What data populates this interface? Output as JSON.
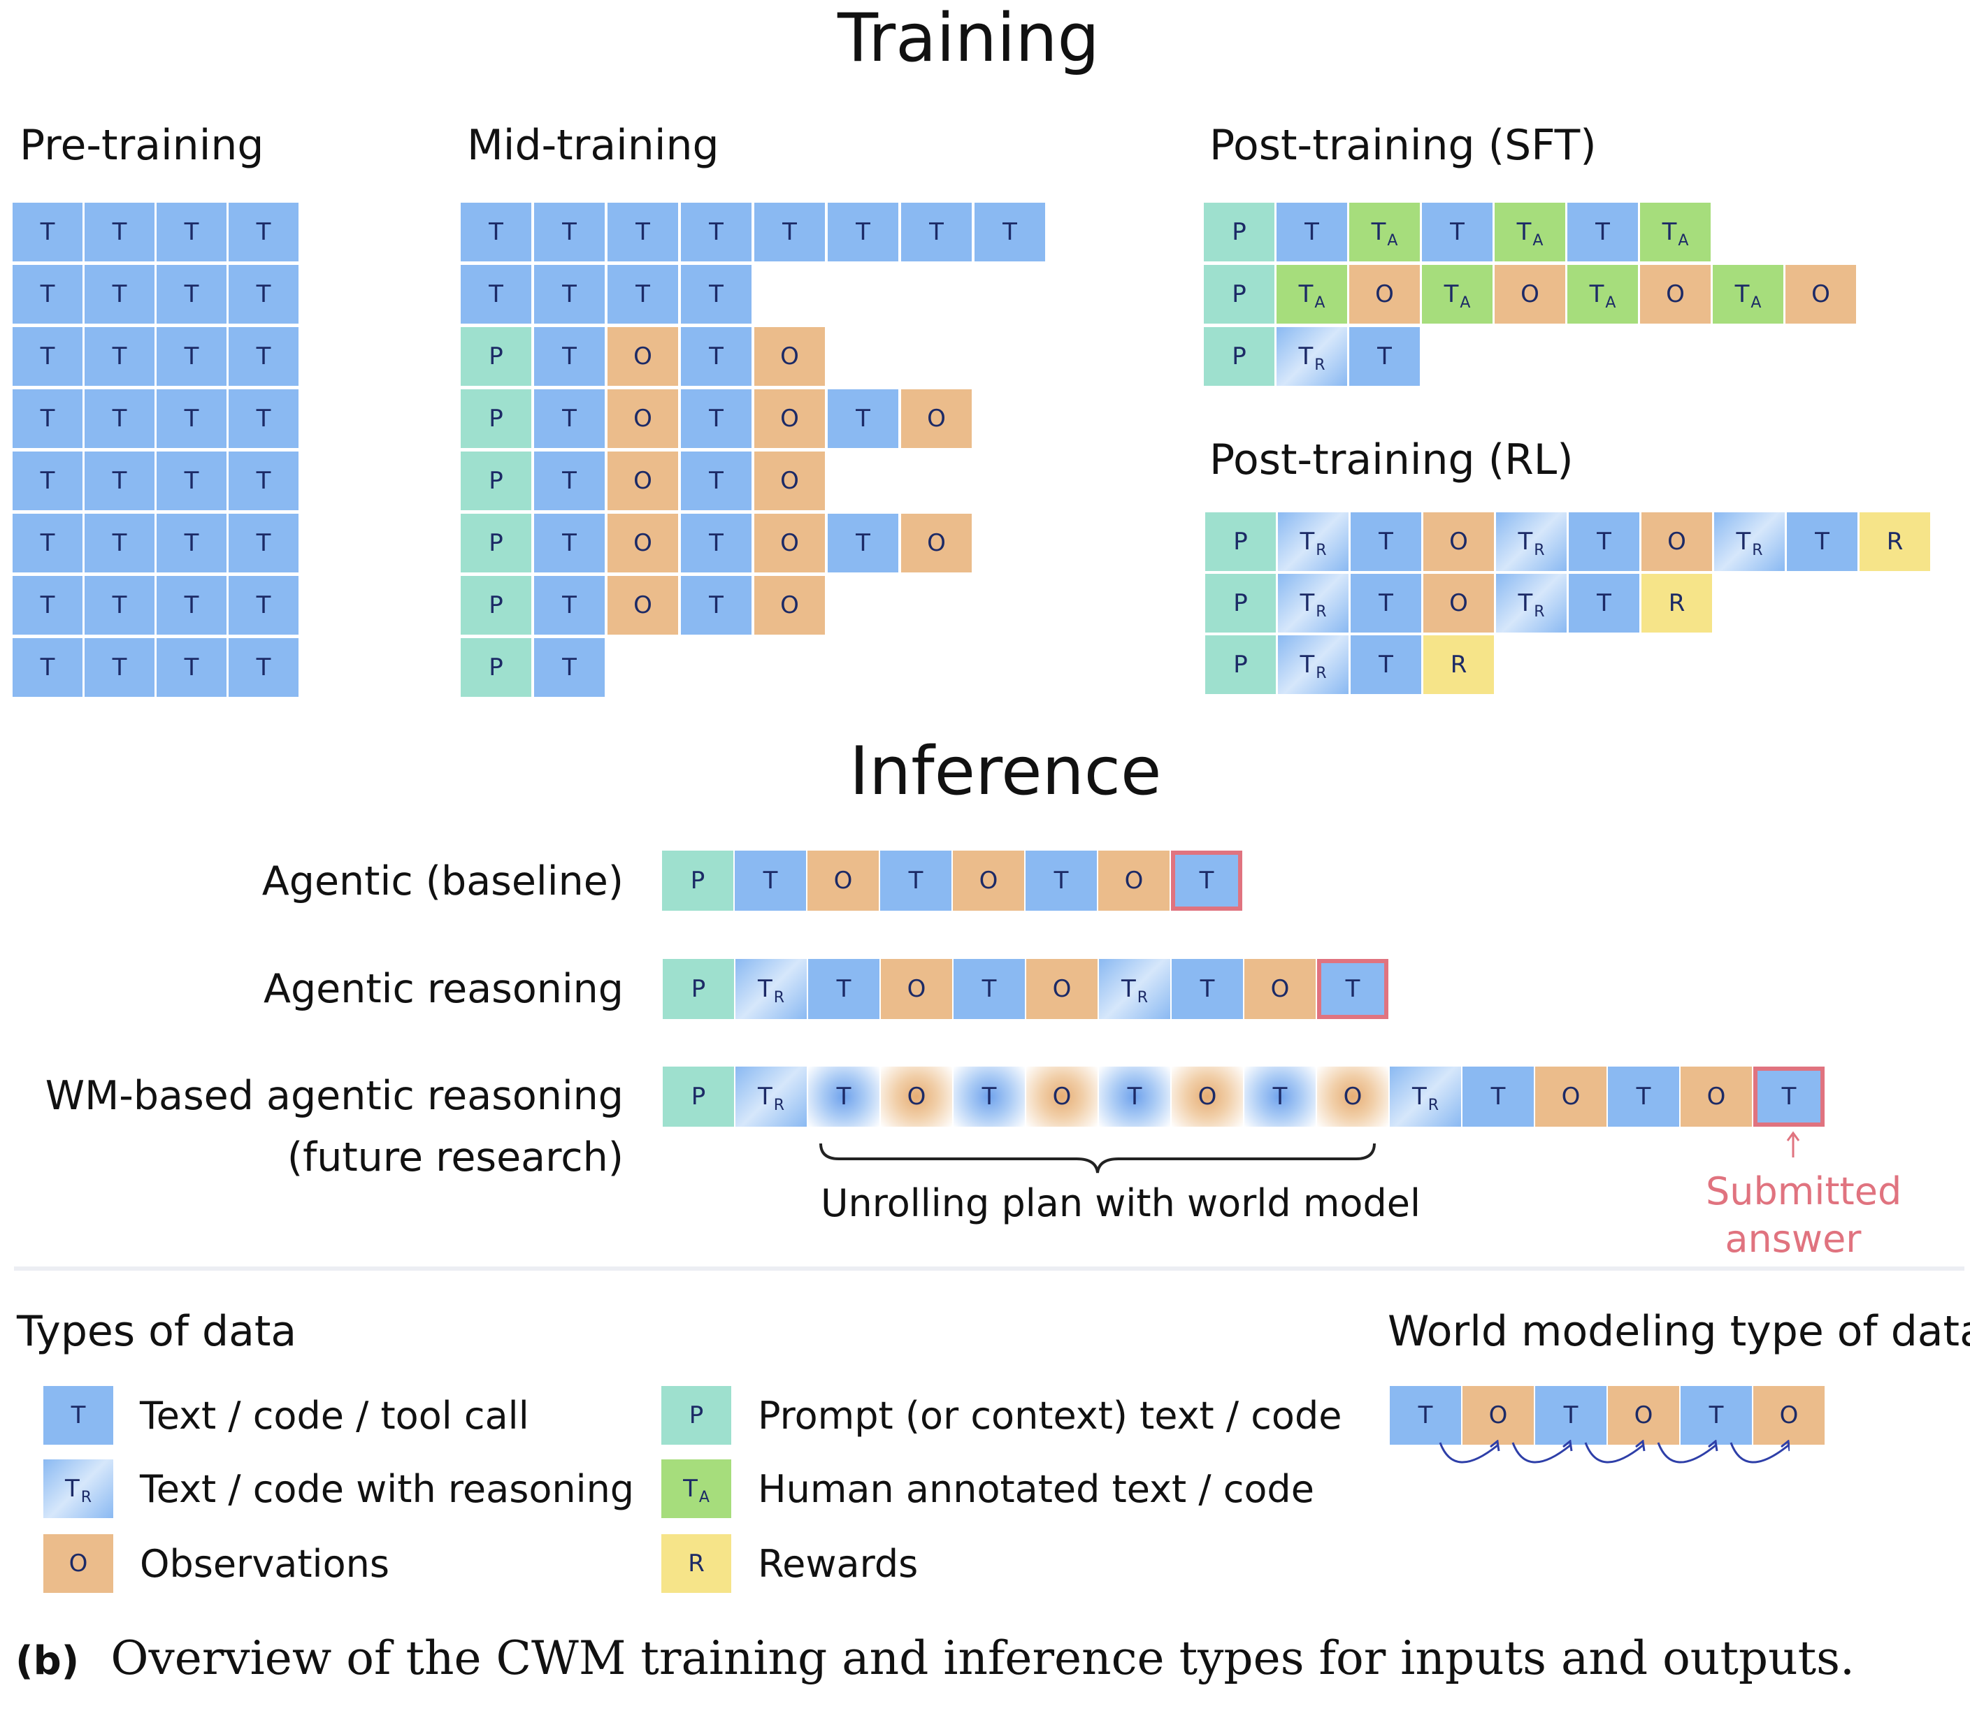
{
  "titles": {
    "training": "Training",
    "inference": "Inference"
  },
  "sections": {
    "pretraining": "Pre-training",
    "midtraining": "Mid-training",
    "post_sft": "Post-training (SFT)",
    "post_rl": "Post-training (RL)"
  },
  "inference_labels": {
    "baseline": "Agentic (baseline)",
    "reasoning": "Agentic reasoning",
    "wm_line1": "WM-based agentic reasoning",
    "wm_line2": "(future research)",
    "brace_text": "Unrolling plan with world model",
    "submitted_line1": "Submitted",
    "submitted_line2": "answer"
  },
  "legend": {
    "title": "Types of data",
    "wm_title": "World modeling type of data",
    "items": [
      {
        "type": "T",
        "text": "Text / code / tool call"
      },
      {
        "type": "TR",
        "text": "Text / code with reasoning"
      },
      {
        "type": "O",
        "text": "Observations"
      },
      {
        "type": "P",
        "text": "Prompt (or context)  text / code"
      },
      {
        "type": "TA",
        "text": "Human annotated text / code"
      },
      {
        "type": "R",
        "text": "Rewards"
      }
    ]
  },
  "caption": {
    "label": "(b)",
    "text": "Overview of the CWM training and inference types for inputs and outputs."
  },
  "token_letters": {
    "T": "T",
    "O": "O",
    "P": "P",
    "R": "R",
    "TR_main": "T",
    "TR_sub": "R",
    "TA_main": "T",
    "TA_sub": "A"
  },
  "sequences": {
    "pretraining": [
      [
        "T",
        "T",
        "T",
        "T"
      ],
      [
        "T",
        "T",
        "T",
        "T"
      ],
      [
        "T",
        "T",
        "T",
        "T"
      ],
      [
        "T",
        "T",
        "T",
        "T"
      ],
      [
        "T",
        "T",
        "T",
        "T"
      ],
      [
        "T",
        "T",
        "T",
        "T"
      ],
      [
        "T",
        "T",
        "T",
        "T"
      ],
      [
        "T",
        "T",
        "T",
        "T"
      ]
    ],
    "midtraining": [
      [
        "T",
        "T",
        "T",
        "T",
        "T",
        "T",
        "T",
        "T"
      ],
      [
        "T",
        "T",
        "T",
        "T"
      ],
      [
        "P",
        "T",
        "O",
        "T",
        "O"
      ],
      [
        "P",
        "T",
        "O",
        "T",
        "O",
        "T",
        "O"
      ],
      [
        "P",
        "T",
        "O",
        "T",
        "O"
      ],
      [
        "P",
        "T",
        "O",
        "T",
        "O",
        "T",
        "O"
      ],
      [
        "P",
        "T",
        "O",
        "T",
        "O"
      ],
      [
        "P",
        "T"
      ]
    ],
    "post_sft": [
      [
        "P",
        "T",
        "TA",
        "T",
        "TA",
        "T",
        "TA"
      ],
      [
        "P",
        "TA",
        "O",
        "TA",
        "O",
        "TA",
        "O",
        "TA",
        "O"
      ],
      [
        "P",
        "TR",
        "T"
      ]
    ],
    "post_rl": [
      [
        "P",
        "TR",
        "T",
        "O",
        "TR",
        "T",
        "O",
        "TR",
        "T",
        "R"
      ],
      [
        "P",
        "TR",
        "T",
        "O",
        "TR",
        "T",
        "R"
      ],
      [
        "P",
        "TR",
        "T",
        "R"
      ]
    ],
    "inf_baseline": [
      "P",
      "T",
      "O",
      "T",
      "O",
      "T",
      "O",
      "T*"
    ],
    "inf_reasoning": [
      "P",
      "TR",
      "T",
      "O",
      "T",
      "O",
      "TR",
      "T",
      "O",
      "T*"
    ],
    "inf_wm": [
      "P",
      "TR",
      "TW",
      "OW",
      "TW",
      "OW",
      "TW",
      "OW",
      "TW",
      "OW",
      "TR",
      "T",
      "O",
      "T",
      "O",
      "T*"
    ],
    "wm_legend": [
      "T",
      "O",
      "T",
      "O",
      "T",
      "O"
    ]
  },
  "colors": {
    "T": "#8ab9f2",
    "O": "#ebbc8b",
    "P": "#9ee0ce",
    "TA": "#a6dd7c",
    "R": "#f6e489",
    "highlight": "#e0737f",
    "arrow": "#2e3fa8",
    "text": "#1c2a66"
  }
}
